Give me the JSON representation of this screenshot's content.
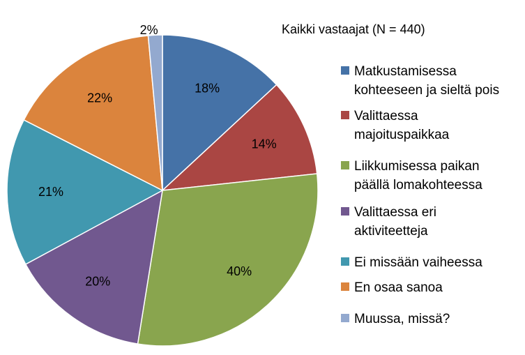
{
  "chart_data": {
    "type": "pie",
    "title": "Kaikki vastaajat (N = 440)",
    "start_angle_deg": 0,
    "direction": "clockwise",
    "legend_position": "right",
    "slices": [
      {
        "name": "Matkustamisessa kohteeseen ja sieltä pois",
        "legend_lines": [
          "Matkustamisessa",
          "kohteeseen ja sieltä pois"
        ],
        "value": 18,
        "weight": 13.4,
        "label": "18%",
        "color": "#4572A7"
      },
      {
        "name": "Valittaessa majoituspaikkaa",
        "legend_lines": [
          "Valittaessa",
          "majoituspaikkaa"
        ],
        "value": 14,
        "weight": 10.4,
        "label": "14%",
        "color": "#AA4643"
      },
      {
        "name": "Liikkumisessa paikan päällä lomakohteessa",
        "legend_lines": [
          "Liikkumisessa paikan",
          "päällä lomakohteessa"
        ],
        "value": 40,
        "weight": 29.9,
        "label": "40%",
        "color": "#89A54E"
      },
      {
        "name": "Valittaessa eri aktiviteetteja",
        "legend_lines": [
          "Valittaessa eri",
          "aktiviteetteja"
        ],
        "value": 20,
        "weight": 14.9,
        "label": "20%",
        "color": "#71588F"
      },
      {
        "name": "Ei missään vaiheessa",
        "legend_lines": [
          "Ei missään vaiheessa"
        ],
        "value": 21,
        "weight": 15.7,
        "label": "21%",
        "color": "#4198AF"
      },
      {
        "name": "En osaa sanoa",
        "legend_lines": [
          "En osaa sanoa"
        ],
        "value": 22,
        "weight": 16.4,
        "label": "22%",
        "color": "#DB843D"
      },
      {
        "name": "Muussa, missä?",
        "legend_lines": [
          "Muussa, missä?"
        ],
        "value": 2,
        "weight": 1.5,
        "label": "2%",
        "color": "#93A9CF"
      }
    ]
  }
}
